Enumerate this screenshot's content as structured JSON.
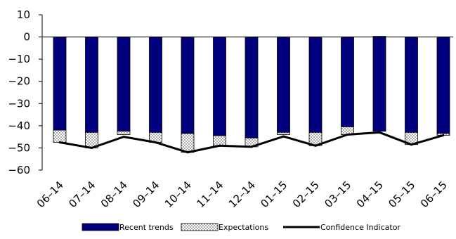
{
  "chart_data": {
    "type": "bar",
    "categories": [
      "06–14",
      "07–14",
      "08–14",
      "09–14",
      "10–14",
      "11–14",
      "12–14",
      "01–15",
      "02–15",
      "03–15",
      "04–15",
      "05–15",
      "06–15"
    ],
    "series": [
      {
        "name": "Recent trends",
        "type": "bar",
        "stack": "neg",
        "color": "#00007f",
        "values": [
          -42,
          -43,
          -42.5,
          -43,
          -43.5,
          -44.5,
          -45.5,
          -43,
          -43,
          -40.5,
          -42.5,
          -43,
          -43.5
        ]
      },
      {
        "name": "Expectations",
        "type": "bar",
        "stack": "neg",
        "pattern": "dots",
        "values": [
          -5.5,
          -7,
          -1.5,
          -4.5,
          -8.5,
          -4.5,
          -4,
          -1,
          -6,
          -3.5,
          0,
          -5.5,
          -0.8
        ]
      },
      {
        "name": "Confidence Indicator",
        "type": "line",
        "color": "#000000",
        "values": [
          -47.5,
          -50,
          -45,
          -47.5,
          -52,
          -49,
          -49.5,
          -44.8,
          -49,
          -44,
          -43,
          -48.5,
          -44.3
        ]
      }
    ],
    "positive_part": [
      0,
      0,
      0,
      0,
      0,
      0,
      0,
      0,
      0,
      0,
      0.3,
      0,
      0
    ],
    "ylim": [
      -60,
      10
    ],
    "yticks": [
      "10",
      "0",
      "−10",
      "−20",
      "−30",
      "−40",
      "−50",
      "−60"
    ],
    "ytick_values": [
      10,
      0,
      -10,
      -20,
      -30,
      -40,
      -50,
      -60
    ],
    "legend_position": "bottom",
    "grid": false
  }
}
